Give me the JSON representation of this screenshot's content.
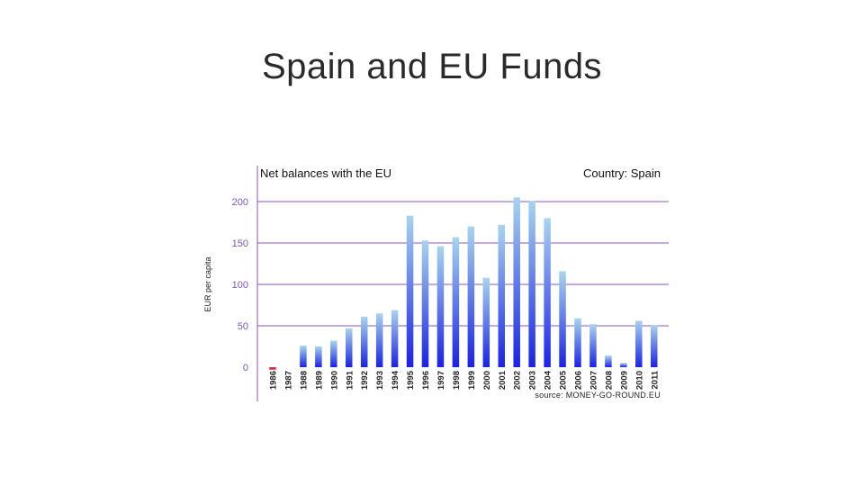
{
  "slide": {
    "title": "Spain and EU Funds"
  },
  "chart_data": {
    "type": "bar",
    "title": "Net balances with the EU",
    "subtitle": "Country: Spain",
    "ylabel": "EUR per capita",
    "xlabel": "",
    "source": "source: MONEY-GO-ROUND.EU",
    "ylim": [
      0,
      200
    ],
    "yticks": [
      0,
      50,
      100,
      150,
      200
    ],
    "ytick_labels": [
      "0",
      "50",
      "100",
      "150",
      "200"
    ],
    "grid": "horizontal",
    "categories": [
      "1986",
      "1987",
      "1988",
      "1989",
      "1990",
      "1991",
      "1992",
      "1993",
      "1994",
      "1995",
      "1996",
      "1997",
      "1998",
      "1999",
      "2000",
      "2001",
      "2002",
      "2003",
      "2004",
      "2005",
      "2006",
      "2007",
      "2008",
      "2009",
      "2010",
      "2011"
    ],
    "values": [
      -3,
      0,
      26,
      25,
      32,
      47,
      61,
      65,
      69,
      183,
      153,
      146,
      157,
      170,
      108,
      172,
      205,
      201,
      180,
      116,
      59,
      52,
      14,
      5,
      56,
      51
    ],
    "colors": {
      "positive_top": "#a8d4ee",
      "positive_bottom": "#1a22e6",
      "negative": "#e8273a",
      "grid": "#8a55c2",
      "axis": "#8a55c2"
    }
  }
}
